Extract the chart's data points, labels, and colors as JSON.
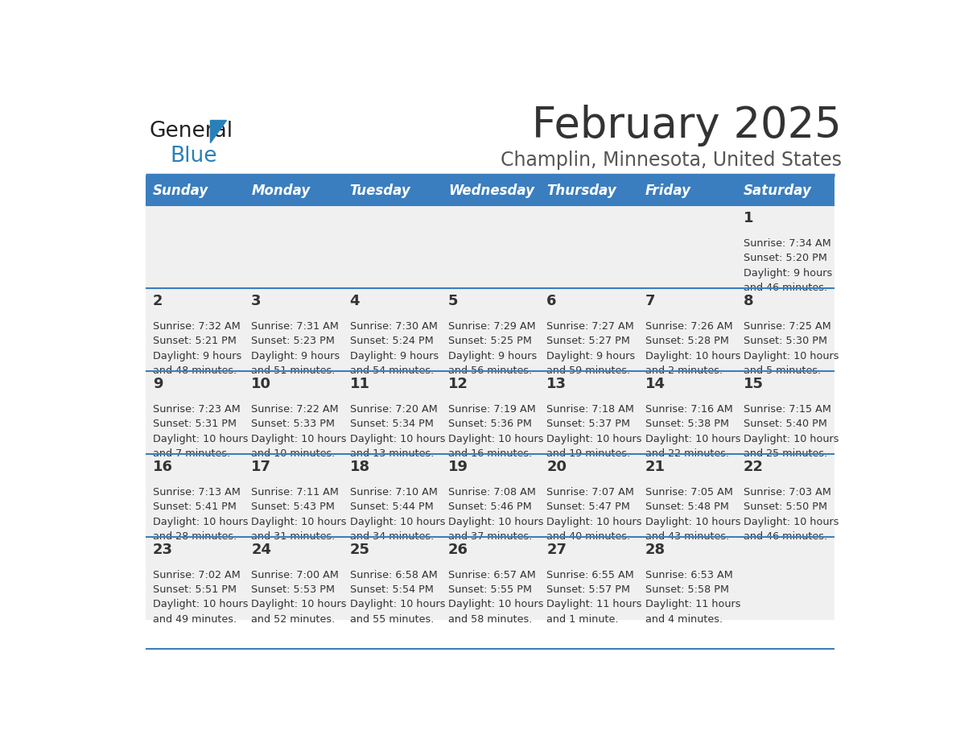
{
  "title": "February 2025",
  "subtitle": "Champlin, Minnesota, United States",
  "days_of_week": [
    "Sunday",
    "Monday",
    "Tuesday",
    "Wednesday",
    "Thursday",
    "Friday",
    "Saturday"
  ],
  "header_bg": "#3a7ebf",
  "header_text": "#ffffff",
  "row_bg_light": "#f0f0f0",
  "cell_text": "#333333",
  "border_color": "#3a7ebf",
  "title_color": "#333333",
  "subtitle_color": "#555555",
  "logo_general_color": "#222222",
  "logo_blue_color": "#2980b9",
  "logo_triangle_color": "#2980b9",
  "calendar_data": [
    [
      null,
      null,
      null,
      null,
      null,
      null,
      {
        "day": "1",
        "sunrise": "7:34 AM",
        "sunset": "5:20 PM",
        "daylight_line1": "Daylight: 9 hours",
        "daylight_line2": "and 46 minutes."
      }
    ],
    [
      {
        "day": "2",
        "sunrise": "7:32 AM",
        "sunset": "5:21 PM",
        "daylight_line1": "Daylight: 9 hours",
        "daylight_line2": "and 48 minutes."
      },
      {
        "day": "3",
        "sunrise": "7:31 AM",
        "sunset": "5:23 PM",
        "daylight_line1": "Daylight: 9 hours",
        "daylight_line2": "and 51 minutes."
      },
      {
        "day": "4",
        "sunrise": "7:30 AM",
        "sunset": "5:24 PM",
        "daylight_line1": "Daylight: 9 hours",
        "daylight_line2": "and 54 minutes."
      },
      {
        "day": "5",
        "sunrise": "7:29 AM",
        "sunset": "5:25 PM",
        "daylight_line1": "Daylight: 9 hours",
        "daylight_line2": "and 56 minutes."
      },
      {
        "day": "6",
        "sunrise": "7:27 AM",
        "sunset": "5:27 PM",
        "daylight_line1": "Daylight: 9 hours",
        "daylight_line2": "and 59 minutes."
      },
      {
        "day": "7",
        "sunrise": "7:26 AM",
        "sunset": "5:28 PM",
        "daylight_line1": "Daylight: 10 hours",
        "daylight_line2": "and 2 minutes."
      },
      {
        "day": "8",
        "sunrise": "7:25 AM",
        "sunset": "5:30 PM",
        "daylight_line1": "Daylight: 10 hours",
        "daylight_line2": "and 5 minutes."
      }
    ],
    [
      {
        "day": "9",
        "sunrise": "7:23 AM",
        "sunset": "5:31 PM",
        "daylight_line1": "Daylight: 10 hours",
        "daylight_line2": "and 7 minutes."
      },
      {
        "day": "10",
        "sunrise": "7:22 AM",
        "sunset": "5:33 PM",
        "daylight_line1": "Daylight: 10 hours",
        "daylight_line2": "and 10 minutes."
      },
      {
        "day": "11",
        "sunrise": "7:20 AM",
        "sunset": "5:34 PM",
        "daylight_line1": "Daylight: 10 hours",
        "daylight_line2": "and 13 minutes."
      },
      {
        "day": "12",
        "sunrise": "7:19 AM",
        "sunset": "5:36 PM",
        "daylight_line1": "Daylight: 10 hours",
        "daylight_line2": "and 16 minutes."
      },
      {
        "day": "13",
        "sunrise": "7:18 AM",
        "sunset": "5:37 PM",
        "daylight_line1": "Daylight: 10 hours",
        "daylight_line2": "and 19 minutes."
      },
      {
        "day": "14",
        "sunrise": "7:16 AM",
        "sunset": "5:38 PM",
        "daylight_line1": "Daylight: 10 hours",
        "daylight_line2": "and 22 minutes."
      },
      {
        "day": "15",
        "sunrise": "7:15 AM",
        "sunset": "5:40 PM",
        "daylight_line1": "Daylight: 10 hours",
        "daylight_line2": "and 25 minutes."
      }
    ],
    [
      {
        "day": "16",
        "sunrise": "7:13 AM",
        "sunset": "5:41 PM",
        "daylight_line1": "Daylight: 10 hours",
        "daylight_line2": "and 28 minutes."
      },
      {
        "day": "17",
        "sunrise": "7:11 AM",
        "sunset": "5:43 PM",
        "daylight_line1": "Daylight: 10 hours",
        "daylight_line2": "and 31 minutes."
      },
      {
        "day": "18",
        "sunrise": "7:10 AM",
        "sunset": "5:44 PM",
        "daylight_line1": "Daylight: 10 hours",
        "daylight_line2": "and 34 minutes."
      },
      {
        "day": "19",
        "sunrise": "7:08 AM",
        "sunset": "5:46 PM",
        "daylight_line1": "Daylight: 10 hours",
        "daylight_line2": "and 37 minutes."
      },
      {
        "day": "20",
        "sunrise": "7:07 AM",
        "sunset": "5:47 PM",
        "daylight_line1": "Daylight: 10 hours",
        "daylight_line2": "and 40 minutes."
      },
      {
        "day": "21",
        "sunrise": "7:05 AM",
        "sunset": "5:48 PM",
        "daylight_line1": "Daylight: 10 hours",
        "daylight_line2": "and 43 minutes."
      },
      {
        "day": "22",
        "sunrise": "7:03 AM",
        "sunset": "5:50 PM",
        "daylight_line1": "Daylight: 10 hours",
        "daylight_line2": "and 46 minutes."
      }
    ],
    [
      {
        "day": "23",
        "sunrise": "7:02 AM",
        "sunset": "5:51 PM",
        "daylight_line1": "Daylight: 10 hours",
        "daylight_line2": "and 49 minutes."
      },
      {
        "day": "24",
        "sunrise": "7:00 AM",
        "sunset": "5:53 PM",
        "daylight_line1": "Daylight: 10 hours",
        "daylight_line2": "and 52 minutes."
      },
      {
        "day": "25",
        "sunrise": "6:58 AM",
        "sunset": "5:54 PM",
        "daylight_line1": "Daylight: 10 hours",
        "daylight_line2": "and 55 minutes."
      },
      {
        "day": "26",
        "sunrise": "6:57 AM",
        "sunset": "5:55 PM",
        "daylight_line1": "Daylight: 10 hours",
        "daylight_line2": "and 58 minutes."
      },
      {
        "day": "27",
        "sunrise": "6:55 AM",
        "sunset": "5:57 PM",
        "daylight_line1": "Daylight: 11 hours",
        "daylight_line2": "and 1 minute."
      },
      {
        "day": "28",
        "sunrise": "6:53 AM",
        "sunset": "5:58 PM",
        "daylight_line1": "Daylight: 11 hours",
        "daylight_line2": "and 4 minutes."
      },
      null
    ]
  ]
}
